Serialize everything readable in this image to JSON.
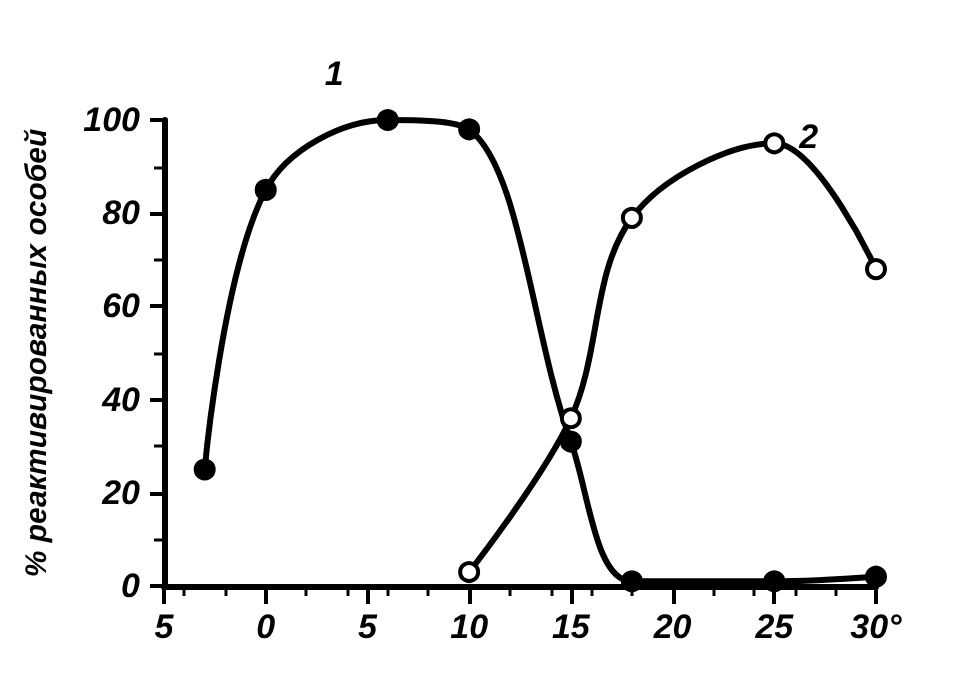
{
  "chart_data": {
    "type": "line",
    "ylabel": "% реактивированных особей",
    "xlim": [
      -5,
      30
    ],
    "xticks": [
      {
        "value": -5,
        "label": "5"
      },
      0,
      5,
      10,
      15,
      20,
      25,
      {
        "value": 30,
        "label": "30°"
      }
    ],
    "ylim": [
      0,
      100
    ],
    "yticks": [
      0,
      20,
      40,
      60,
      80,
      100
    ],
    "grid": false,
    "legend": false,
    "marker": "circle",
    "line_style": "solid",
    "series": [
      {
        "name": "1",
        "color": "#000000",
        "x": [
          -3,
          0,
          6,
          10,
          15,
          18,
          25,
          30
        ],
        "values": [
          25,
          85,
          100,
          98,
          31,
          1,
          1,
          2
        ]
      },
      {
        "name": "2",
        "color": "#000000",
        "x": [
          10,
          15,
          18,
          25,
          30
        ],
        "values": [
          3,
          36,
          79,
          95,
          68
        ]
      }
    ]
  }
}
